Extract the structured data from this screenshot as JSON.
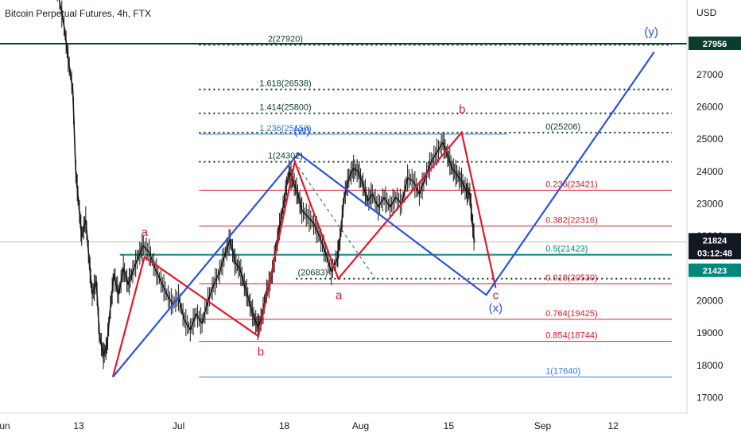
{
  "chart_data": {
    "type": "line",
    "title": "Bitcoin Perpetual Futures, 4h, FTX",
    "currency": "USD",
    "y_ticks": [
      17000,
      18000,
      19000,
      20000,
      21000,
      22000,
      23000,
      24000,
      25000,
      26000,
      27000
    ],
    "x_ticks": [
      {
        "label": "Jun",
        "day": 0
      },
      {
        "label": "13",
        "day": 13
      },
      {
        "label": "Jul",
        "day": 30
      },
      {
        "label": "18",
        "day": 48
      },
      {
        "label": "Aug",
        "day": 61
      },
      {
        "label": "15",
        "day": 76
      },
      {
        "label": "Sep",
        "day": 92
      },
      {
        "label": "12",
        "day": 104
      }
    ],
    "ylim": [
      16200,
      29100
    ],
    "xlim": [
      0,
      114
    ],
    "grid": false,
    "price_series": [
      {
        "day": 9.0,
        "value": 30000
      },
      {
        "day": 10.5,
        "value": 28500
      },
      {
        "day": 11.2,
        "value": 27500
      },
      {
        "day": 12.0,
        "value": 26500
      },
      {
        "day": 12.5,
        "value": 24000
      },
      {
        "day": 13.0,
        "value": 23000
      },
      {
        "day": 13.5,
        "value": 22000
      },
      {
        "day": 14.2,
        "value": 22500
      },
      {
        "day": 14.8,
        "value": 21200
      },
      {
        "day": 15.3,
        "value": 20200
      },
      {
        "day": 16.0,
        "value": 20600
      },
      {
        "day": 16.5,
        "value": 19000
      },
      {
        "day": 17.2,
        "value": 18300
      },
      {
        "day": 17.8,
        "value": 18600
      },
      {
        "day": 18.4,
        "value": 19800
      },
      {
        "day": 19.0,
        "value": 20800
      },
      {
        "day": 19.8,
        "value": 20200
      },
      {
        "day": 20.6,
        "value": 21000
      },
      {
        "day": 21.4,
        "value": 20500
      },
      {
        "day": 22.2,
        "value": 20900
      },
      {
        "day": 23.2,
        "value": 21400
      },
      {
        "day": 24.0,
        "value": 21700
      },
      {
        "day": 25.0,
        "value": 21500
      },
      {
        "day": 26.0,
        "value": 21000
      },
      {
        "day": 27.0,
        "value": 20600
      },
      {
        "day": 28.0,
        "value": 20200
      },
      {
        "day": 29.0,
        "value": 19900
      },
      {
        "day": 30.0,
        "value": 20100
      },
      {
        "day": 31.0,
        "value": 19400
      },
      {
        "day": 32.0,
        "value": 19100
      },
      {
        "day": 33.0,
        "value": 19600
      },
      {
        "day": 34.0,
        "value": 19300
      },
      {
        "day": 35.0,
        "value": 20000
      },
      {
        "day": 36.0,
        "value": 20500
      },
      {
        "day": 37.0,
        "value": 20900
      },
      {
        "day": 38.0,
        "value": 21500
      },
      {
        "day": 38.8,
        "value": 21900
      },
      {
        "day": 39.6,
        "value": 21200
      },
      {
        "day": 40.4,
        "value": 21000
      },
      {
        "day": 41.2,
        "value": 20500
      },
      {
        "day": 42.0,
        "value": 20000
      },
      {
        "day": 42.8,
        "value": 19500
      },
      {
        "day": 43.5,
        "value": 19200
      },
      {
        "day": 44.2,
        "value": 19500
      },
      {
        "day": 45.0,
        "value": 20300
      },
      {
        "day": 45.8,
        "value": 20700
      },
      {
        "day": 46.5,
        "value": 21500
      },
      {
        "day": 47.2,
        "value": 22300
      },
      {
        "day": 48.0,
        "value": 23100
      },
      {
        "day": 48.8,
        "value": 24000
      },
      {
        "day": 49.5,
        "value": 23700
      },
      {
        "day": 50.3,
        "value": 23300
      },
      {
        "day": 51.0,
        "value": 22800
      },
      {
        "day": 52.0,
        "value": 22600
      },
      {
        "day": 53.0,
        "value": 22400
      },
      {
        "day": 54.0,
        "value": 22000
      },
      {
        "day": 55.0,
        "value": 21500
      },
      {
        "day": 56.0,
        "value": 20900
      },
      {
        "day": 57.0,
        "value": 21300
      },
      {
        "day": 57.5,
        "value": 21900
      },
      {
        "day": 58.2,
        "value": 23200
      },
      {
        "day": 59.0,
        "value": 23800
      },
      {
        "day": 59.8,
        "value": 24100
      },
      {
        "day": 60.6,
        "value": 24000
      },
      {
        "day": 61.4,
        "value": 23600
      },
      {
        "day": 62.2,
        "value": 23100
      },
      {
        "day": 63.0,
        "value": 23300
      },
      {
        "day": 64.0,
        "value": 22900
      },
      {
        "day": 65.0,
        "value": 23200
      },
      {
        "day": 66.0,
        "value": 22900
      },
      {
        "day": 67.0,
        "value": 23200
      },
      {
        "day": 68.0,
        "value": 23000
      },
      {
        "day": 69.0,
        "value": 23800
      },
      {
        "day": 70.0,
        "value": 23700
      },
      {
        "day": 71.0,
        "value": 23300
      },
      {
        "day": 72.0,
        "value": 23800
      },
      {
        "day": 73.0,
        "value": 24300
      },
      {
        "day": 74.0,
        "value": 24600
      },
      {
        "day": 75.0,
        "value": 24900
      },
      {
        "day": 75.8,
        "value": 24500
      },
      {
        "day": 76.6,
        "value": 24100
      },
      {
        "day": 77.4,
        "value": 23900
      },
      {
        "day": 78.2,
        "value": 23700
      },
      {
        "day": 79.0,
        "value": 23400
      },
      {
        "day": 79.6,
        "value": 23300
      },
      {
        "day": 80.0,
        "value": 22500
      },
      {
        "day": 80.4,
        "value": 21800
      }
    ],
    "series": [
      {
        "name": "red_wave",
        "color": "#e0192b",
        "points": [
          {
            "day": 18.8,
            "value": 17640
          },
          {
            "day": 24.2,
            "value": 21350
          },
          {
            "day": 43.6,
            "value": 18900
          },
          {
            "day": 49.8,
            "value": 24302
          },
          {
            "day": 57.2,
            "value": 20683
          },
          {
            "day": 78.2,
            "value": 25206
          },
          {
            "day": 84.0,
            "value": 20400
          }
        ]
      },
      {
        "name": "blue_wave",
        "color": "#2a52e0",
        "points": [
          {
            "day": 18.8,
            "value": 17640
          },
          {
            "day": 50.4,
            "value": 24560
          },
          {
            "day": 82.4,
            "value": 20180
          },
          {
            "day": 111.0,
            "value": 27700
          }
        ]
      },
      {
        "name": "dashed_guide",
        "color": "#1d6b5a",
        "points": [
          {
            "day": 49.8,
            "value": 24302
          },
          {
            "day": 63.5,
            "value": 20683
          }
        ]
      }
    ],
    "fib_levels": [
      {
        "label": "2(27920)",
        "value": 27920,
        "x1": 33.5,
        "x2": 114,
        "color": "#0b3c2e",
        "style": "dotted"
      },
      {
        "label": "1.618(26538)",
        "value": 26538,
        "x1": 33.5,
        "x2": 114,
        "color": "#0b3c2e",
        "style": "dotted"
      },
      {
        "label": "1.414(25800)",
        "value": 25800,
        "x1": 33.5,
        "x2": 114,
        "color": "#0b3c2e",
        "style": "dotted"
      },
      {
        "label": "1.236(25156)",
        "value": 25156,
        "x1": 33.5,
        "x2": 86,
        "color": "#2f7bd6",
        "style": "solid"
      },
      {
        "label": "1(24302)",
        "value": 24302,
        "x1": 33.5,
        "x2": 114,
        "color": "#0b3c2e",
        "style": "dotted"
      },
      {
        "label": "0(25206)",
        "value": 25206,
        "x1": 33.5,
        "x2": 114,
        "color": "#0b3c2e",
        "style": "dotted"
      },
      {
        "label": "0.236(23421)",
        "value": 23421,
        "x1": 33.5,
        "x2": 114,
        "color": "#e0192b",
        "style": "solid"
      },
      {
        "label": "0.382(22316)",
        "value": 22316,
        "x1": 33.5,
        "x2": 114,
        "color": "#e0192b",
        "style": "solid"
      },
      {
        "label": "0.5(21423)",
        "value": 21423,
        "x1": 20,
        "x2": 114,
        "color": "#00897b",
        "style": "solid"
      },
      {
        "label": "(20683)",
        "value": 20683,
        "x1": 50,
        "x2": 114,
        "color": "#0b3c2e",
        "style": "dotted"
      },
      {
        "label": "0.618(20530)",
        "value": 20530,
        "x1": 33.5,
        "x2": 114,
        "color": "#e0192b",
        "style": "solid"
      },
      {
        "label": "0.764(19425)",
        "value": 19425,
        "x1": 33.5,
        "x2": 114,
        "color": "#e0192b",
        "style": "solid"
      },
      {
        "label": "0.854(18744)",
        "value": 18744,
        "x1": 33.5,
        "x2": 114,
        "color": "#e0192b",
        "style": "solid"
      },
      {
        "label": "1(17640)",
        "value": 17640,
        "x1": 33.5,
        "x2": 114,
        "color": "#2f7bd6",
        "style": "solid"
      }
    ],
    "wave_labels": [
      {
        "text": "a",
        "day": 24.2,
        "value": 22000,
        "color": "#e0192b"
      },
      {
        "text": "b",
        "day": 44.0,
        "value": 18300,
        "color": "#e0192b"
      },
      {
        "text": "(w)",
        "day": 51.0,
        "value": 25150,
        "color": "#2a52e0"
      },
      {
        "text": "a",
        "day": 57.3,
        "value": 20050,
        "color": "#e0192b"
      },
      {
        "text": "b",
        "day": 78.3,
        "value": 25800,
        "color": "#e0192b"
      },
      {
        "text": "c",
        "day": 84.0,
        "value": 20050,
        "color": "#e0192b"
      },
      {
        "text": "(x)",
        "day": 84.0,
        "value": 19650,
        "color": "#2a52e0"
      },
      {
        "text": "(y)",
        "day": 110.5,
        "value": 28200,
        "color": "#2a52e0"
      }
    ],
    "horizontal_lines": [
      {
        "value": 27956,
        "color": "#0b3c2e"
      },
      {
        "value": 21824,
        "color": "#0b3c2e"
      }
    ],
    "axis_tags": [
      {
        "text": "27956",
        "value": 27956,
        "bg": "#0b3c2e",
        "fg": "#ffffff"
      },
      {
        "text": "21824",
        "value": 21824,
        "bg": "#131722",
        "fg": "#ffffff"
      },
      {
        "text": "03:12:48",
        "value": 21824,
        "bg": "#131722",
        "fg": "#ffffff"
      },
      {
        "text": "21423",
        "value": 21423,
        "bg": "#00897b",
        "fg": "#ffffff"
      }
    ]
  }
}
